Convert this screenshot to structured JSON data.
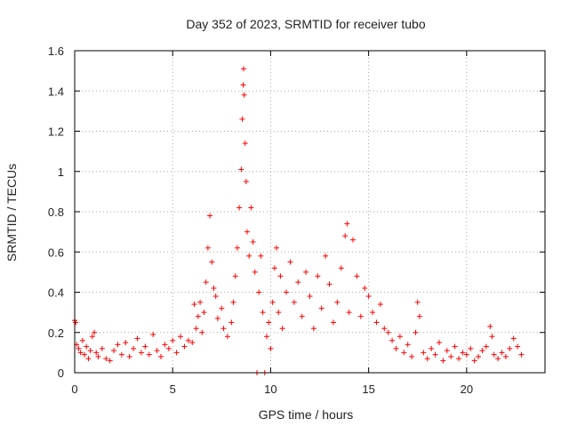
{
  "chart_data": {
    "type": "scatter",
    "title": "Day 352 of 2023, SRMTID for receiver tubo",
    "xlabel": "GPS time / hours",
    "ylabel": "SRMTID / TECUs",
    "xlim": [
      0,
      24
    ],
    "ylim": [
      0,
      1.6
    ],
    "x_ticks": [
      0,
      5,
      10,
      15,
      20
    ],
    "x_tick_labels": [
      "0",
      "5",
      "10",
      "15",
      "20"
    ],
    "y_ticks": [
      0,
      0.2,
      0.4,
      0.6,
      0.8,
      1.0,
      1.2,
      1.4,
      1.6
    ],
    "y_tick_labels": [
      "0",
      "0.2",
      "0.4",
      "0.6",
      "0.8",
      "1",
      "1.2",
      "1.4",
      "1.6"
    ],
    "grid": true,
    "marker": "+",
    "color": "#ff0000",
    "series": [
      {
        "name": "SRMTID",
        "points": [
          [
            0.0,
            0.26
          ],
          [
            0.05,
            0.25
          ],
          [
            0.1,
            0.14
          ],
          [
            0.2,
            0.12
          ],
          [
            0.3,
            0.1
          ],
          [
            0.4,
            0.16
          ],
          [
            0.5,
            0.09
          ],
          [
            0.6,
            0.13
          ],
          [
            0.7,
            0.07
          ],
          [
            0.8,
            0.11
          ],
          [
            0.9,
            0.18
          ],
          [
            1.0,
            0.2
          ],
          [
            1.1,
            0.1
          ],
          [
            1.2,
            0.08
          ],
          [
            1.4,
            0.12
          ],
          [
            1.6,
            0.07
          ],
          [
            1.8,
            0.06
          ],
          [
            2.0,
            0.11
          ],
          [
            2.2,
            0.14
          ],
          [
            2.4,
            0.09
          ],
          [
            2.6,
            0.15
          ],
          [
            2.8,
            0.08
          ],
          [
            3.0,
            0.12
          ],
          [
            3.2,
            0.17
          ],
          [
            3.4,
            0.1
          ],
          [
            3.6,
            0.13
          ],
          [
            3.8,
            0.09
          ],
          [
            4.0,
            0.19
          ],
          [
            4.2,
            0.11
          ],
          [
            4.4,
            0.08
          ],
          [
            4.6,
            0.14
          ],
          [
            4.8,
            0.12
          ],
          [
            5.0,
            0.16
          ],
          [
            5.2,
            0.1
          ],
          [
            5.4,
            0.18
          ],
          [
            5.6,
            0.13
          ],
          [
            5.8,
            0.16
          ],
          [
            6.0,
            0.15
          ],
          [
            6.1,
            0.34
          ],
          [
            6.2,
            0.22
          ],
          [
            6.3,
            0.28
          ],
          [
            6.4,
            0.35
          ],
          [
            6.5,
            0.2
          ],
          [
            6.6,
            0.3
          ],
          [
            6.7,
            0.45
          ],
          [
            6.8,
            0.62
          ],
          [
            6.9,
            0.78
          ],
          [
            7.0,
            0.55
          ],
          [
            7.1,
            0.42
          ],
          [
            7.2,
            0.38
          ],
          [
            7.3,
            0.27
          ],
          [
            7.5,
            0.32
          ],
          [
            7.6,
            0.22
          ],
          [
            7.8,
            0.18
          ],
          [
            8.0,
            0.25
          ],
          [
            8.1,
            0.35
          ],
          [
            8.2,
            0.48
          ],
          [
            8.3,
            0.62
          ],
          [
            8.4,
            0.82
          ],
          [
            8.5,
            1.01
          ],
          [
            8.55,
            1.26
          ],
          [
            8.6,
            1.43
          ],
          [
            8.62,
            1.51
          ],
          [
            8.65,
            1.38
          ],
          [
            8.7,
            1.14
          ],
          [
            8.75,
            0.95
          ],
          [
            8.8,
            0.7
          ],
          [
            8.9,
            0.58
          ],
          [
            9.0,
            0.82
          ],
          [
            9.1,
            0.65
          ],
          [
            9.2,
            0.5
          ],
          [
            9.3,
            0.0
          ],
          [
            9.4,
            0.4
          ],
          [
            9.5,
            0.58
          ],
          [
            9.6,
            0.3
          ],
          [
            9.7,
            0.0
          ],
          [
            9.8,
            0.18
          ],
          [
            9.9,
            0.25
          ],
          [
            10.0,
            0.12
          ],
          [
            10.1,
            0.35
          ],
          [
            10.2,
            0.52
          ],
          [
            10.3,
            0.62
          ],
          [
            10.4,
            0.3
          ],
          [
            10.5,
            0.48
          ],
          [
            10.6,
            0.22
          ],
          [
            10.8,
            0.4
          ],
          [
            11.0,
            0.55
          ],
          [
            11.2,
            0.35
          ],
          [
            11.4,
            0.45
          ],
          [
            11.6,
            0.28
          ],
          [
            11.8,
            0.5
          ],
          [
            12.0,
            0.38
          ],
          [
            12.2,
            0.22
          ],
          [
            12.4,
            0.48
          ],
          [
            12.6,
            0.32
          ],
          [
            12.8,
            0.58
          ],
          [
            13.0,
            0.44
          ],
          [
            13.2,
            0.25
          ],
          [
            13.4,
            0.35
          ],
          [
            13.6,
            0.52
          ],
          [
            13.8,
            0.68
          ],
          [
            13.9,
            0.74
          ],
          [
            14.0,
            0.3
          ],
          [
            14.2,
            0.66
          ],
          [
            14.4,
            0.48
          ],
          [
            14.6,
            0.28
          ],
          [
            14.8,
            0.42
          ],
          [
            15.0,
            0.38
          ],
          [
            15.2,
            0.3
          ],
          [
            15.4,
            0.25
          ],
          [
            15.6,
            0.34
          ],
          [
            15.8,
            0.22
          ],
          [
            16.0,
            0.2
          ],
          [
            16.2,
            0.16
          ],
          [
            16.4,
            0.12
          ],
          [
            16.6,
            0.18
          ],
          [
            16.8,
            0.1
          ],
          [
            17.0,
            0.14
          ],
          [
            17.2,
            0.08
          ],
          [
            17.4,
            0.2
          ],
          [
            17.5,
            0.35
          ],
          [
            17.6,
            0.28
          ],
          [
            17.8,
            0.1
          ],
          [
            18.0,
            0.07
          ],
          [
            18.2,
            0.12
          ],
          [
            18.4,
            0.09
          ],
          [
            18.6,
            0.15
          ],
          [
            18.8,
            0.06
          ],
          [
            19.0,
            0.11
          ],
          [
            19.2,
            0.08
          ],
          [
            19.4,
            0.13
          ],
          [
            19.6,
            0.07
          ],
          [
            19.8,
            0.1
          ],
          [
            20.0,
            0.09
          ],
          [
            20.2,
            0.12
          ],
          [
            20.4,
            0.06
          ],
          [
            20.6,
            0.08
          ],
          [
            20.8,
            0.11
          ],
          [
            21.0,
            0.13
          ],
          [
            21.2,
            0.23
          ],
          [
            21.3,
            0.18
          ],
          [
            21.4,
            0.09
          ],
          [
            21.6,
            0.07
          ],
          [
            21.8,
            0.1
          ],
          [
            22.0,
            0.08
          ],
          [
            22.2,
            0.12
          ],
          [
            22.4,
            0.17
          ],
          [
            22.6,
            0.13
          ],
          [
            22.8,
            0.09
          ]
        ]
      }
    ]
  }
}
